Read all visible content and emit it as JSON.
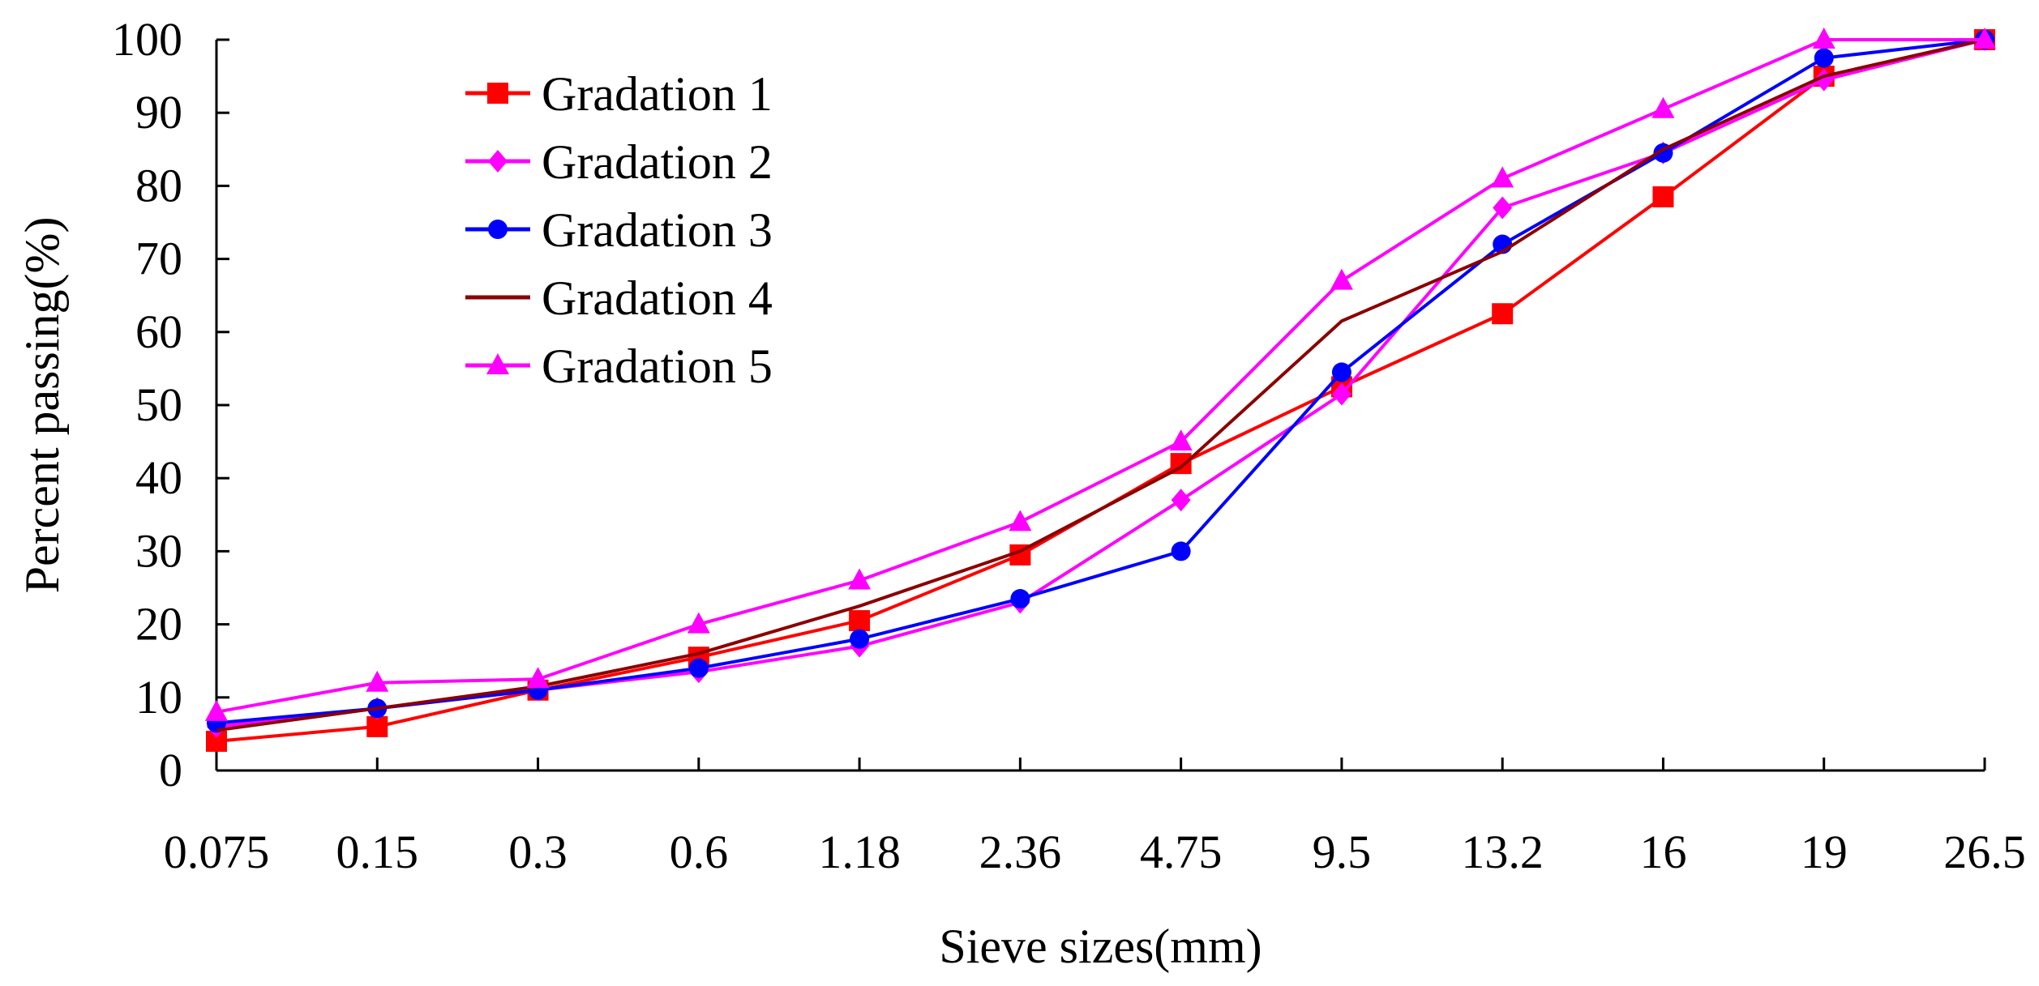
{
  "chart_data": {
    "type": "line",
    "title": "",
    "xlabel": "Sieve sizes(mm)",
    "ylabel": "Percent passing(%)",
    "categories": [
      "0.075",
      "0.15",
      "0.3",
      "0.6",
      "1.18",
      "2.36",
      "4.75",
      "9.5",
      "13.2",
      "16",
      "19",
      "26.5"
    ],
    "ylim": [
      0,
      100
    ],
    "yticks": [
      "0",
      "10",
      "20",
      "30",
      "40",
      "50",
      "60",
      "70",
      "80",
      "90",
      "100"
    ],
    "grid": false,
    "legend_position": "top-left",
    "series": [
      {
        "name": "Gradation 1",
        "color": "#ff0000",
        "marker": "square",
        "values": [
          4.0,
          6.0,
          11.0,
          15.5,
          20.5,
          29.5,
          42.0,
          52.5,
          62.5,
          78.5,
          95.0,
          100
        ]
      },
      {
        "name": "Gradation 2",
        "color": "#ff00ff",
        "marker": "diamond",
        "values": [
          6.0,
          8.5,
          11.0,
          13.5,
          17.0,
          23.0,
          37.0,
          51.5,
          77.0,
          84.5,
          94.5,
          100
        ]
      },
      {
        "name": "Gradation 3",
        "color": "#0000ff",
        "marker": "circle",
        "values": [
          6.5,
          8.5,
          11.0,
          14.0,
          18.0,
          23.5,
          30.0,
          54.5,
          72.0,
          84.5,
          97.5,
          100
        ]
      },
      {
        "name": "Gradation 4",
        "color": "#8b0000",
        "marker": "none",
        "values": [
          5.5,
          8.5,
          11.5,
          16.0,
          22.5,
          30.0,
          41.5,
          61.5,
          71.0,
          85.0,
          95.0,
          100
        ]
      },
      {
        "name": "Gradation 5",
        "color": "#ff00ff",
        "marker": "triangle",
        "values": [
          8.0,
          12.0,
          12.5,
          20.0,
          26.0,
          34.0,
          45.0,
          67.0,
          81.0,
          90.5,
          100,
          100
        ]
      }
    ]
  }
}
